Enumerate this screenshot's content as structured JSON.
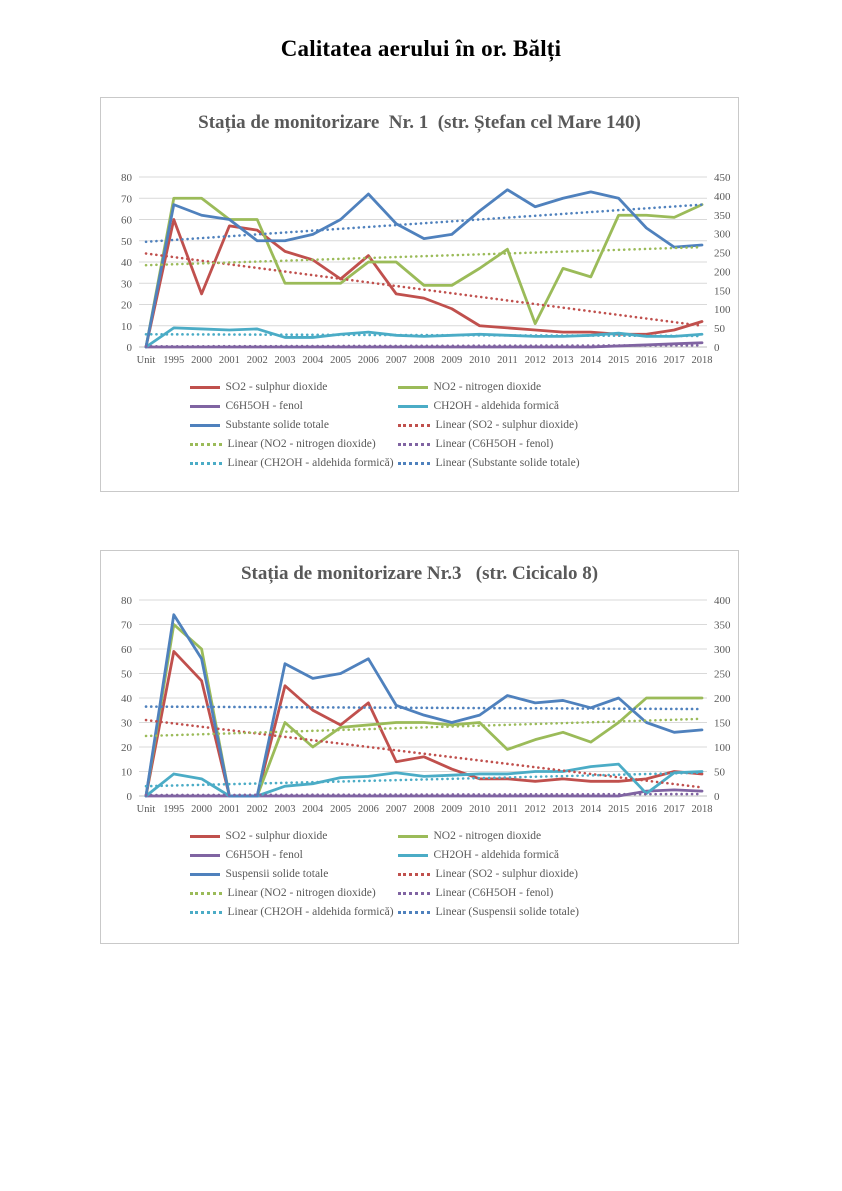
{
  "page": {
    "title": "Calitatea aerului în or. Bălți"
  },
  "chart_data": [
    {
      "type": "line",
      "title": "Stația de monitorizare  Nr. 1  (str. Ștefan cel Mare 140)",
      "grid": true,
      "legend_position": "bottom",
      "categories": [
        "Unit",
        "1995",
        "2000",
        "2001",
        "2002",
        "2003",
        "2004",
        "2005",
        "2006",
        "2007",
        "2008",
        "2009",
        "2010",
        "2011",
        "2012",
        "2013",
        "2014",
        "2015",
        "2016",
        "2017",
        "2018"
      ],
      "left_axis": {
        "max": 80,
        "ticks": [
          80,
          70,
          60,
          50,
          40,
          30,
          20,
          10,
          0
        ]
      },
      "right_axis": {
        "ticks": [
          450,
          400,
          350,
          300,
          250,
          200,
          150,
          100,
          50,
          0
        ]
      },
      "series": [
        {
          "name": "SO2 - sulphur dioxide",
          "color": "#C0504D",
          "values": [
            0,
            60,
            25,
            57,
            55,
            45,
            41,
            32,
            43,
            25,
            23,
            18,
            10,
            9,
            8,
            7,
            7,
            6,
            6,
            8,
            12
          ]
        },
        {
          "name": "NO2 - nitrogen dioxide",
          "color": "#9BBB59",
          "values": [
            0,
            70,
            70,
            60,
            60,
            30,
            30,
            30,
            40,
            40,
            29,
            29,
            37,
            46,
            11,
            37,
            33,
            62,
            62,
            61,
            67
          ]
        },
        {
          "name": "C6H5OH - fenol",
          "color": "#8064A2",
          "values": [
            0,
            0,
            0,
            0,
            0,
            0,
            0,
            0,
            0,
            0,
            0,
            0,
            0,
            0,
            0,
            0,
            0,
            0.5,
            1,
            1.5,
            2
          ]
        },
        {
          "name": "CH2OH - aldehida formică",
          "color": "#4BACC6",
          "values": [
            0,
            9,
            8.5,
            8,
            8.5,
            4.5,
            4.5,
            6,
            7,
            5.5,
            5,
            5.5,
            6,
            5.5,
            5,
            5,
            5.5,
            6.5,
            5,
            5,
            6
          ]
        },
        {
          "name": "Substante solide totale",
          "color": "#4F81BD",
          "values": [
            0,
            67,
            62,
            60,
            50,
            50,
            53,
            60,
            72,
            58,
            51,
            53,
            64,
            74,
            66,
            70,
            73,
            70,
            56,
            47,
            48
          ]
        }
      ],
      "trendlines": [
        {
          "name": "Linear (SO2 - sulphur dioxide)",
          "color": "#C0504D",
          "start": 44,
          "end": 10
        },
        {
          "name": "Linear (NO2 - nitrogen dioxide)",
          "color": "#9BBB59",
          "start": 38.5,
          "end": 47
        },
        {
          "name": "Linear (C6H5OH - fenol)",
          "color": "#8064A2",
          "start": 0.3,
          "end": 0.8
        },
        {
          "name": "Linear (CH2OH - aldehida formică)",
          "color": "#4BACC6",
          "start": 6,
          "end": 5.2
        },
        {
          "name": "Linear (Substante solide totale)",
          "color": "#4F81BD",
          "start": 49.5,
          "end": 67
        }
      ]
    },
    {
      "type": "line",
      "title": "Stația de monitorizare Nr.3   (str. Cicicalo 8)",
      "grid": true,
      "legend_position": "bottom",
      "categories": [
        "Unit",
        "1995",
        "2000",
        "2001",
        "2002",
        "2003",
        "2004",
        "2005",
        "2006",
        "2007",
        "2008",
        "2009",
        "2010",
        "2011",
        "2012",
        "2013",
        "2014",
        "2015",
        "2016",
        "2017",
        "2018"
      ],
      "left_axis": {
        "max": 80,
        "ticks": [
          80,
          70,
          60,
          50,
          40,
          30,
          20,
          10,
          0
        ]
      },
      "right_axis": {
        "ticks": [
          400,
          350,
          300,
          250,
          200,
          150,
          100,
          50,
          0
        ]
      },
      "series": [
        {
          "name": "SO2 - sulphur dioxide",
          "color": "#C0504D",
          "values": [
            0,
            59,
            47,
            0,
            0,
            45,
            35,
            29,
            38,
            14,
            16,
            11,
            7,
            7,
            6,
            7,
            6,
            6,
            7,
            10,
            9
          ]
        },
        {
          "name": "NO2 - nitrogen dioxide",
          "color": "#9BBB59",
          "values": [
            0,
            70,
            60,
            0,
            0,
            30,
            20,
            28,
            29,
            30,
            30,
            29,
            30,
            19,
            23,
            26,
            22,
            30,
            40,
            40,
            40
          ]
        },
        {
          "name": "C6H5OH - fenol",
          "color": "#8064A2",
          "values": [
            0,
            0,
            0,
            0,
            0,
            0,
            0,
            0,
            0,
            0,
            0,
            0,
            0,
            0,
            0,
            0,
            0,
            0,
            2,
            2.5,
            2
          ]
        },
        {
          "name": "CH2OH - aldehida formică",
          "color": "#4BACC6",
          "values": [
            0,
            9,
            7,
            0,
            0,
            4,
            5,
            7.5,
            8,
            9.5,
            8,
            8.5,
            9,
            9,
            10,
            10,
            12,
            13,
            1,
            9.5,
            10
          ]
        },
        {
          "name": "Suspensii solide  totale",
          "color": "#4F81BD",
          "values": [
            0,
            74,
            56,
            0,
            0,
            54,
            48,
            50,
            56,
            37,
            33,
            30,
            33,
            41,
            38,
            39,
            36,
            40,
            30,
            26,
            27
          ]
        }
      ],
      "trendlines": [
        {
          "name": "Linear (SO2 - sulphur dioxide)",
          "color": "#C0504D",
          "start": 31,
          "end": 3.5
        },
        {
          "name": "Linear (NO2 - nitrogen dioxide)",
          "color": "#9BBB59",
          "start": 24.5,
          "end": 31.5
        },
        {
          "name": "Linear (C6H5OH - fenol)",
          "color": "#8064A2",
          "start": 0.4,
          "end": 0.8
        },
        {
          "name": "Linear (CH2OH - aldehida formică)",
          "color": "#4BACC6",
          "start": 4,
          "end": 9.5
        },
        {
          "name": "Linear (Suspensii solide  totale)",
          "color": "#4F81BD",
          "start": 36.5,
          "end": 35.5
        }
      ]
    }
  ]
}
